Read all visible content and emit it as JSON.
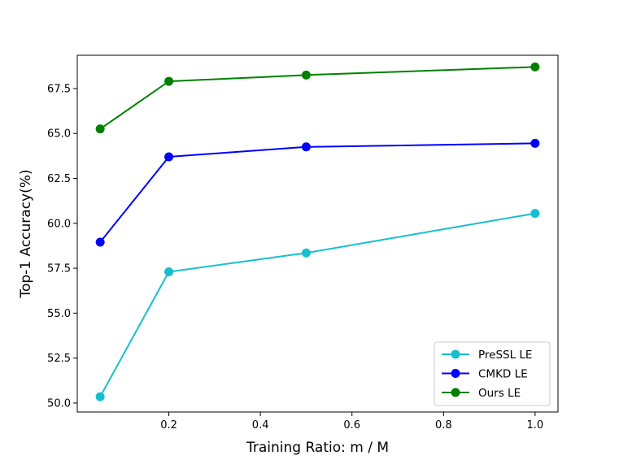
{
  "chart_data": {
    "type": "line",
    "title": "",
    "xlabel": "Training Ratio: m / M",
    "ylabel": "Top-1 Accuracy(%)",
    "x": [
      0.05,
      0.2,
      0.5,
      1.0
    ],
    "xlim": [
      0.0,
      1.05
    ],
    "ylim": [
      49.5,
      69.35
    ],
    "xticks": [
      0.2,
      0.4,
      0.6,
      0.8,
      1.0
    ],
    "xtick_labels": [
      "0.2",
      "0.4",
      "0.6",
      "0.8",
      "1.0"
    ],
    "yticks": [
      50.0,
      52.5,
      55.0,
      57.5,
      60.0,
      62.5,
      65.0,
      67.5
    ],
    "ytick_labels": [
      "50.0",
      "52.5",
      "55.0",
      "57.5",
      "60.0",
      "62.5",
      "65.0",
      "67.5"
    ],
    "grid": false,
    "legend_position": "bottom-right",
    "series": [
      {
        "name": "PreSSL LE",
        "color": "#17becf",
        "values": [
          50.35,
          57.3,
          58.35,
          60.55
        ]
      },
      {
        "name": "CMKD LE",
        "color": "#0000ff",
        "values": [
          58.95,
          63.7,
          64.25,
          64.45
        ]
      },
      {
        "name": "Ours LE",
        "color": "#008000",
        "values": [
          65.25,
          67.9,
          68.25,
          68.7
        ]
      }
    ]
  }
}
